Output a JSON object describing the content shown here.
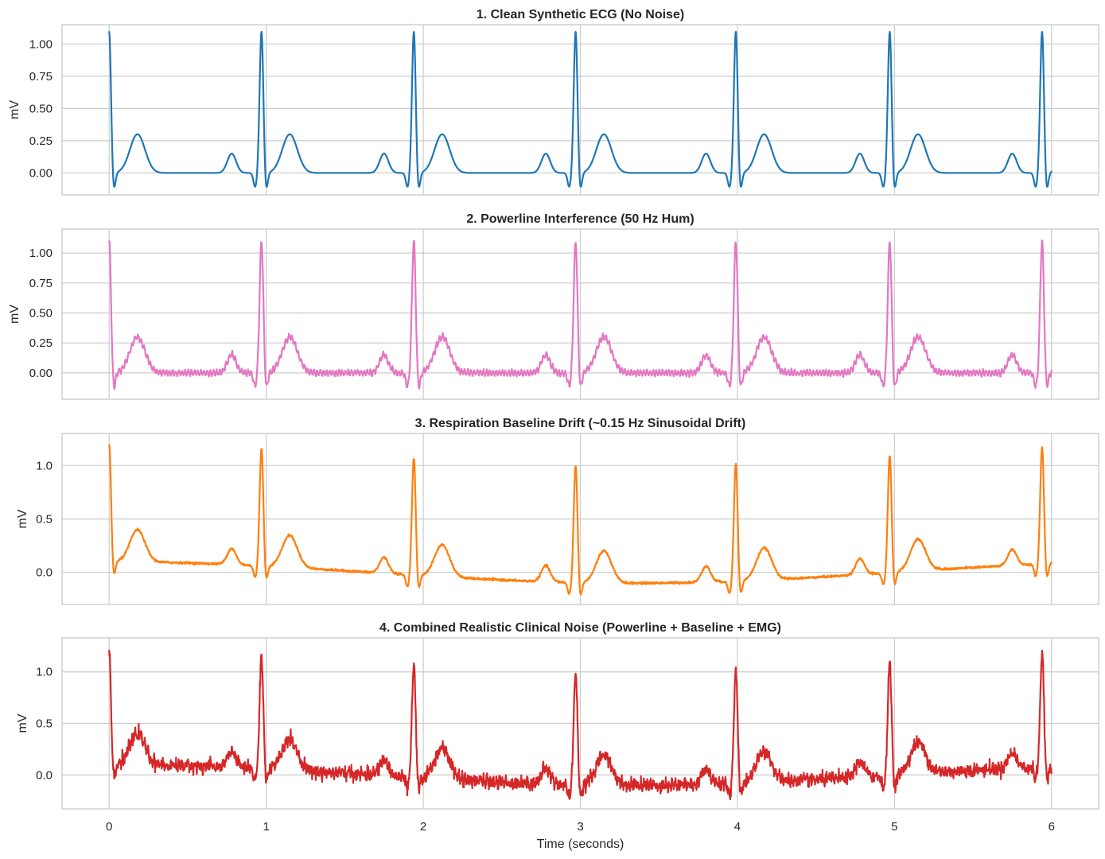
{
  "chart_data": [
    {
      "type": "line",
      "title": "1. Clean Synthetic ECG (No Noise)",
      "ylabel": "mV",
      "xlabel": "",
      "xlim": [
        -0.3,
        6.3
      ],
      "ylim": [
        -0.17,
        1.15
      ],
      "yticks": [
        0.0,
        0.25,
        0.5,
        0.75,
        1.0
      ],
      "ytick_labels": [
        "0.00",
        "0.25",
        "0.50",
        "0.75",
        "1.00"
      ],
      "xticks": [
        0,
        1,
        2,
        3,
        4,
        5,
        6
      ],
      "xtick_labels": [],
      "grid": true,
      "color": "#1f77b4",
      "noise": "none",
      "series": [
        {
          "peaks_s": [
            0.0,
            0.97,
            1.94,
            2.97,
            3.99,
            4.97,
            5.94
          ],
          "r_amplitude_mv": 1.1,
          "t_amplitude_mv": 0.3,
          "p_amplitude_mv": 0.15,
          "baseline_mv": 0.0
        }
      ]
    },
    {
      "type": "line",
      "title": "2. Powerline Interference (50 Hz Hum)",
      "ylabel": "mV",
      "xlabel": "",
      "xlim": [
        -0.3,
        6.3
      ],
      "ylim": [
        -0.22,
        1.2
      ],
      "yticks": [
        0.0,
        0.25,
        0.5,
        0.75,
        1.0
      ],
      "ytick_labels": [
        "0.00",
        "0.25",
        "0.50",
        "0.75",
        "1.00"
      ],
      "xticks": [
        0,
        1,
        2,
        3,
        4,
        5,
        6
      ],
      "xtick_labels": [],
      "grid": true,
      "color": "#e377c2",
      "noise": "powerline 50 Hz",
      "series": [
        {
          "peaks_s": [
            0.0,
            0.97,
            1.94,
            2.97,
            3.99,
            4.97,
            5.94
          ],
          "r_amplitude_mv": 1.1,
          "t_amplitude_mv": 0.3,
          "p_amplitude_mv": 0.15,
          "baseline_mv": 0.0
        }
      ]
    },
    {
      "type": "line",
      "title": "3. Respiration Baseline Drift (~0.15 Hz Sinusoidal Drift)",
      "ylabel": "mV",
      "xlabel": "",
      "xlim": [
        -0.3,
        6.3
      ],
      "ylim": [
        -0.3,
        1.3
      ],
      "yticks": [
        0.0,
        0.5,
        1.0
      ],
      "ytick_labels": [
        "0.0",
        "0.5",
        "1.0"
      ],
      "xticks": [
        0,
        1,
        2,
        3,
        4,
        5,
        6
      ],
      "xtick_labels": [],
      "grid": true,
      "color": "#ff7f0e",
      "noise": "baseline drift ~0.15 Hz",
      "series": [
        {
          "peaks_s": [
            0.0,
            0.97,
            1.94,
            2.97,
            3.99,
            4.97,
            5.94
          ],
          "r_amplitude_mv": 1.1,
          "t_amplitude_mv": 0.3,
          "p_amplitude_mv": 0.15,
          "baseline_mv": 0.0
        }
      ]
    },
    {
      "type": "line",
      "title": "4. Combined Realistic Clinical Noise (Powerline + Baseline + EMG)",
      "ylabel": "mV",
      "xlabel": "Time (seconds)",
      "xlim": [
        -0.3,
        6.3
      ],
      "ylim": [
        -0.33,
        1.33
      ],
      "yticks": [
        0.0,
        0.5,
        1.0
      ],
      "ytick_labels": [
        "0.0",
        "0.5",
        "1.0"
      ],
      "xticks": [
        0,
        1,
        2,
        3,
        4,
        5,
        6
      ],
      "xtick_labels": [
        "0",
        "1",
        "2",
        "3",
        "4",
        "5",
        "6"
      ],
      "grid": true,
      "color": "#d62728",
      "noise": "powerline + baseline drift + EMG",
      "series": [
        {
          "peaks_s": [
            0.0,
            0.97,
            1.94,
            2.97,
            3.99,
            4.97,
            5.94
          ],
          "r_amplitude_mv": 1.1,
          "t_amplitude_mv": 0.3,
          "p_amplitude_mv": 0.15,
          "baseline_mv": 0.0
        }
      ]
    }
  ]
}
